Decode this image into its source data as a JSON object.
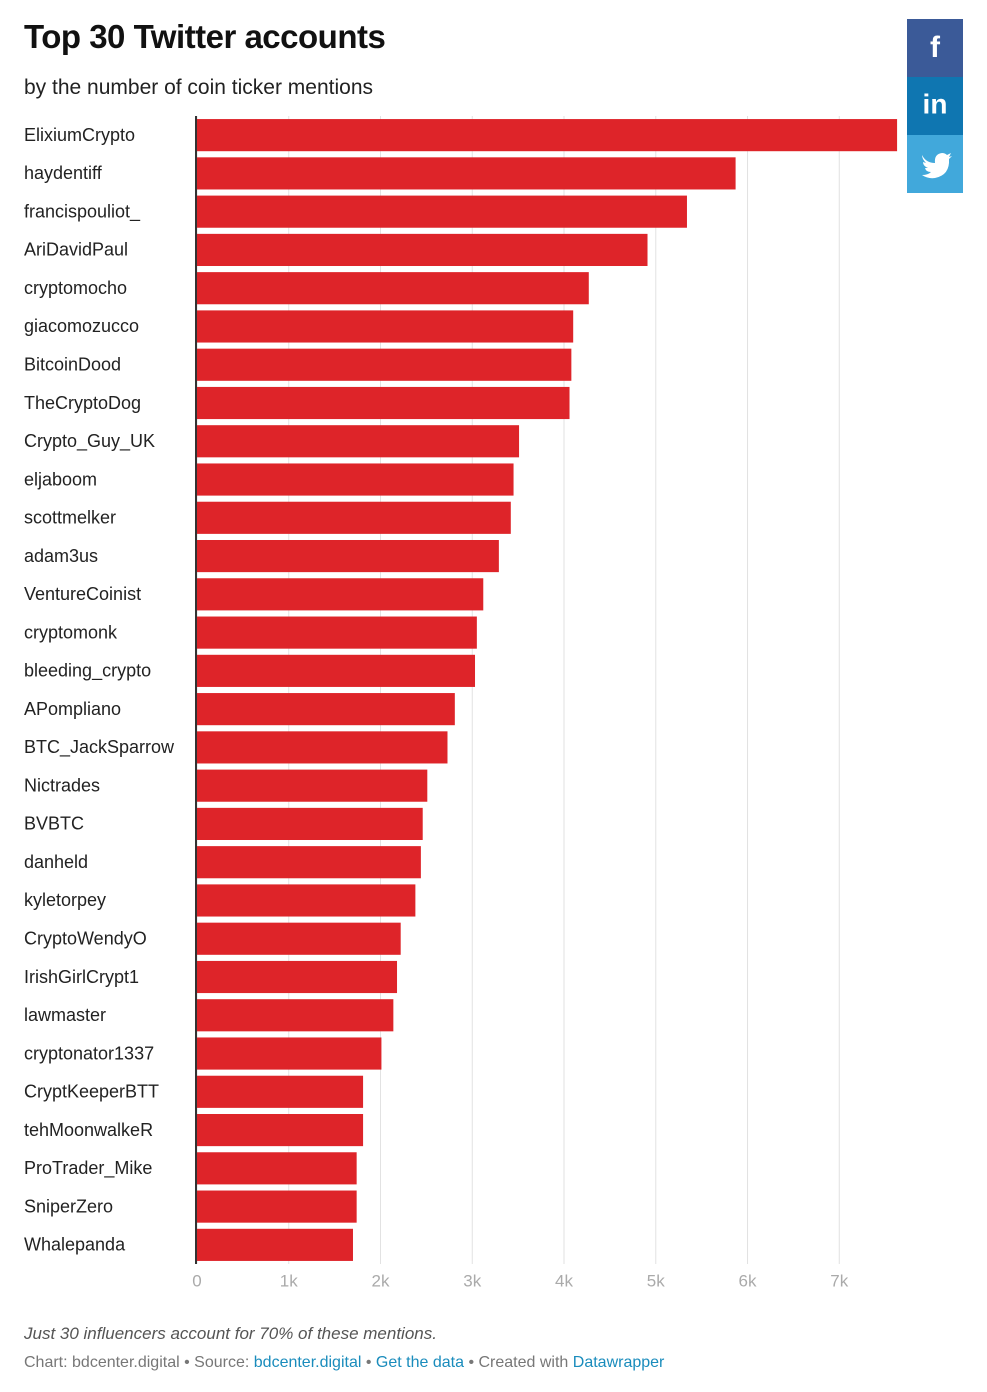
{
  "chart_data": {
    "type": "hbar",
    "title": "Top 30 Twitter accounts",
    "subtitle": "by the number of coin ticker mentions",
    "categories": [
      "ElixiumCrypto",
      "haydentiff",
      "francispouliot_",
      "AriDavidPaul",
      "cryptomocho",
      "giacomozucco",
      "BitcoinDood",
      "TheCryptoDog",
      "Crypto_Guy_UK",
      "eljaboom",
      "scottmelker",
      "adam3us",
      "VentureCoinist",
      "cryptomonk",
      "bleeding_crypto",
      "APompliano",
      "BTC_JackSparrow",
      "Nictrades",
      "BVBTC",
      "danheld",
      "kyletorpey",
      "CryptoWendyO",
      "IrishGirlCrypt1",
      "lawmaster",
      "cryptonator1337",
      "CryptKeeperBTT",
      "tehMoonwalkeR",
      "ProTrader_Mike",
      "SniperZero",
      "Whalepanda"
    ],
    "values": [
      7630,
      5870,
      5340,
      4910,
      4270,
      4100,
      4080,
      4060,
      3510,
      3450,
      3420,
      3290,
      3120,
      3050,
      3030,
      2810,
      2730,
      2510,
      2460,
      2440,
      2380,
      2220,
      2180,
      2140,
      2010,
      1810,
      1810,
      1740,
      1740,
      1700
    ],
    "color": "#de2429",
    "xlim": [
      0,
      7640
    ],
    "xticks": [
      0,
      {
        "value": 1000,
        "label": "1k"
      },
      {
        "value": 2000,
        "label": "2k"
      },
      {
        "value": 3000,
        "label": "3k"
      },
      {
        "value": 4000,
        "label": "4k"
      },
      {
        "value": 5000,
        "label": "5k"
      },
      {
        "value": 6000,
        "label": "6k"
      },
      {
        "value": 7000,
        "label": "7k"
      }
    ],
    "grid": true,
    "note": "Just 30 influencers account for 70% of these mentions.",
    "footer": {
      "chart": "Chart: bdcenter.digital",
      "separator": "•",
      "source_label": "Source:",
      "source": "bdcenter.digital",
      "get_data": "Get the data",
      "created": "Created with",
      "tool": "Datawrapper"
    }
  },
  "share": {
    "facebook": "f",
    "linkedin": "in"
  }
}
